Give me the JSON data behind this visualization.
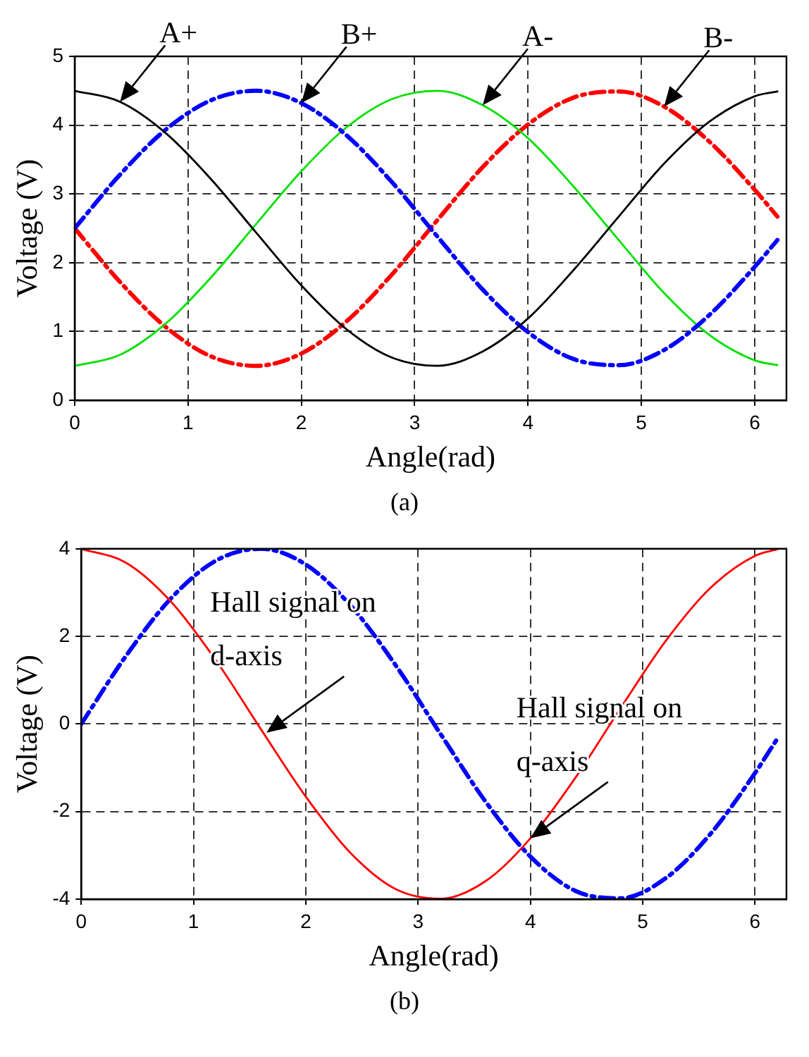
{
  "chart_data": [
    {
      "type": "line",
      "xlabel": "Angle(rad)",
      "ylabel": "Voltage (V)",
      "x": [
        0,
        0.4,
        0.8,
        1.2,
        1.6,
        2.0,
        2.4,
        2.8,
        3.2,
        3.6,
        4.0,
        4.4,
        4.8,
        5.2,
        5.6,
        6.0,
        6.2
      ],
      "xlim": [
        0,
        6.28
      ],
      "xticks": [
        0,
        1,
        2,
        3,
        4,
        5,
        6
      ],
      "ylim": [
        0,
        5
      ],
      "yticks": [
        0,
        1,
        2,
        3,
        4,
        5
      ],
      "grid": true,
      "legend": false,
      "marker": "none",
      "series": [
        {
          "color": "#000000",
          "line_style": "solid",
          "values": [
            4.5,
            4.34,
            3.89,
            3.22,
            2.44,
            1.67,
            1.03,
            0.62,
            0.5,
            0.71,
            1.19,
            1.89,
            2.67,
            3.44,
            4.05,
            4.42,
            4.49
          ]
        },
        {
          "color": "#0000ff",
          "line_style": "dashed",
          "values": [
            2.5,
            3.28,
            3.93,
            4.36,
            4.5,
            4.32,
            3.85,
            3.17,
            2.38,
            1.61,
            0.99,
            0.6,
            0.51,
            0.73,
            1.24,
            1.94,
            2.33
          ]
        },
        {
          "color": "#00e000",
          "line_style": "solid",
          "values": [
            0.5,
            0.66,
            1.11,
            1.78,
            2.56,
            3.33,
            3.97,
            4.38,
            4.5,
            4.29,
            3.81,
            3.11,
            2.33,
            1.56,
            0.95,
            0.58,
            0.51
          ]
        },
        {
          "color": "#ff0000",
          "line_style": "dashed",
          "values": [
            2.5,
            1.72,
            1.07,
            0.64,
            0.5,
            0.68,
            1.15,
            1.83,
            2.62,
            3.39,
            4.01,
            4.4,
            4.49,
            4.27,
            3.76,
            3.06,
            2.67
          ]
        }
      ],
      "annotations": [
        {
          "text": "A+",
          "x": 0.4,
          "y": 4.34
        },
        {
          "text": "B+",
          "x": 2.0,
          "y": 4.32
        },
        {
          "text": "A-",
          "x": 3.6,
          "y": 4.29
        },
        {
          "text": "B-",
          "x": 5.2,
          "y": 4.27
        },
        "(a)"
      ]
    },
    {
      "type": "line",
      "xlabel": "Angle(rad)",
      "ylabel": "Voltage (V)",
      "x": [
        0,
        0.4,
        0.8,
        1.2,
        1.6,
        2.0,
        2.4,
        2.8,
        3.2,
        3.6,
        4.0,
        4.4,
        4.8,
        5.2,
        5.6,
        6.0,
        6.2
      ],
      "xlim": [
        0,
        6.28
      ],
      "xticks": [
        0,
        1,
        2,
        3,
        4,
        5,
        6
      ],
      "ylim": [
        -4,
        4
      ],
      "yticks": [
        -4,
        -2,
        0,
        2,
        4
      ],
      "grid": true,
      "legend": false,
      "marker": "none",
      "series": [
        {
          "color": "#ff0000",
          "line_style": "solid",
          "values": [
            4,
            3.68,
            2.79,
            1.45,
            -0.12,
            -1.66,
            -2.95,
            -3.77,
            -3.99,
            -3.59,
            -2.61,
            -1.23,
            0.35,
            1.88,
            3.1,
            3.84,
            3.99
          ]
        },
        {
          "color": "#0000ff",
          "line_style": "dashed",
          "values": [
            0,
            1.56,
            2.87,
            3.73,
            4,
            3.64,
            2.7,
            1.34,
            -0.23,
            -1.77,
            -3.03,
            -3.81,
            -3.98,
            -3.53,
            -2.52,
            -1.12,
            -0.33
          ]
        }
      ],
      "annotations": [
        {
          "text": "Hall signal on d-axis",
          "x": 1.65,
          "y": -0.2
        },
        {
          "text": "Hall signal on q-axis",
          "x": 4.0,
          "y": -2.61
        },
        "(b)"
      ]
    }
  ]
}
